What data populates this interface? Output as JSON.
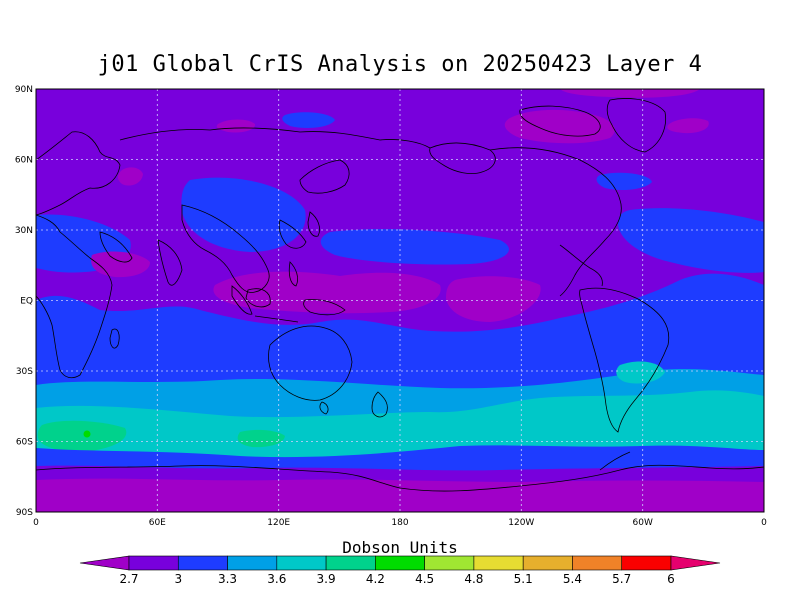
{
  "title": "j01 Global CrIS Analysis on 20250423 Layer 4",
  "map": {
    "projection": "cylindrical equidistant",
    "lon_range": [
      0,
      360
    ],
    "lat_range": [
      -90,
      90
    ],
    "lat_ticks": [
      "90N",
      "60N",
      "30N",
      "EQ",
      "30S",
      "60S",
      "90S"
    ],
    "lon_ticks": [
      "0",
      "60E",
      "120E",
      "180",
      "120W",
      "60W",
      "0"
    ],
    "grid": "dotted",
    "coastlines": true
  },
  "legend": {
    "title": "Dobson Units",
    "levels": [
      "2.7",
      "3",
      "3.3",
      "3.6",
      "3.9",
      "4.2",
      "4.5",
      "4.8",
      "5.1",
      "5.4",
      "5.7",
      "6"
    ],
    "colors": [
      "#a000c8",
      "#7800dc",
      "#1e3cff",
      "#00a0e6",
      "#00c8c8",
      "#00d28c",
      "#00dc00",
      "#a0e632",
      "#e6dc32",
      "#e6af2d",
      "#f08228",
      "#fa0000",
      "#e6006e"
    ]
  },
  "chart_data": {
    "type": "heatmap",
    "title": "j01 Global CrIS Analysis on 20250423 Layer 4",
    "units": "Dobson Units",
    "x_ticks": [
      "0",
      "60E",
      "120E",
      "180",
      "120W",
      "60W",
      "0"
    ],
    "y_ticks": [
      "90N",
      "60N",
      "30N",
      "EQ",
      "30S",
      "60S",
      "90S"
    ],
    "regions": [
      {
        "lat": [
          70,
          90
        ],
        "lon": [
          0,
          360
        ],
        "value": 3.0
      },
      {
        "lat": [
          0,
          70
        ],
        "lon": [
          0,
          360
        ],
        "value": 3.0
      },
      {
        "lat": [
          -30,
          0
        ],
        "lon": [
          0,
          360
        ],
        "value": 3.15
      },
      {
        "lat": [
          -45,
          -30
        ],
        "lon": [
          0,
          360
        ],
        "value": 3.3
      },
      {
        "lat": [
          -65,
          -45
        ],
        "lon": [
          0,
          360
        ],
        "value": 3.6
      },
      {
        "lat": [
          -60,
          -55
        ],
        "lon": [
          0,
          60
        ],
        "value": 4.0
      },
      {
        "lat": [
          -72,
          -65
        ],
        "lon": [
          0,
          360
        ],
        "value": 3.15
      },
      {
        "lat": [
          -90,
          -72
        ],
        "lon": [
          0,
          360
        ],
        "value": 2.85
      }
    ]
  }
}
